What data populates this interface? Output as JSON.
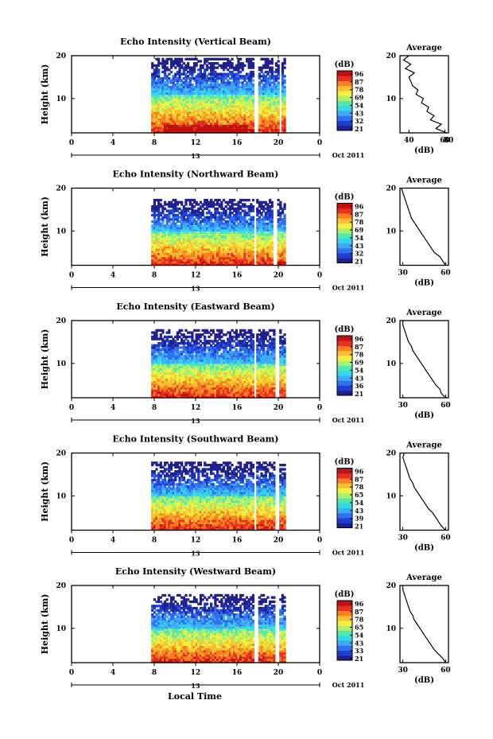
{
  "figure": {
    "x_axis_label": "Local Time",
    "x_range": [
      0,
      24
    ],
    "x_ticks": [
      "0",
      "4",
      "8",
      "12",
      "16",
      "20",
      "0"
    ],
    "day_marker": "13",
    "date_label": "Oct 2011"
  },
  "colors": {
    "colormap": [
      "#20208f",
      "#1f3fd0",
      "#2f6ff0",
      "#3fa8f8",
      "#30d8e8",
      "#50e8b0",
      "#a8f070",
      "#f0f040",
      "#f8c030",
      "#f88020",
      "#e83020",
      "#c01010"
    ],
    "missing": "#ffffff",
    "axis": "#000000"
  },
  "chart_data": [
    {
      "type": "heatmap",
      "title": "Echo Intensity (Vertical Beam)",
      "xlabel": "",
      "ylabel": "Height (km)",
      "xlim": [
        0,
        24
      ],
      "ylim": [
        2,
        20
      ],
      "y_ticks": [
        "10",
        "20"
      ],
      "colorbar": {
        "unit": "(dB)",
        "ticks": [
          "96",
          "87",
          "78",
          "69",
          "54",
          "43",
          "32",
          "21"
        ]
      },
      "data_start_hour": 7.7,
      "data_end_hour": 20.7,
      "data_gaps": [
        [
          17.6,
          18.0
        ],
        [
          20.0,
          20.3
        ]
      ],
      "top_height_km": 19.5,
      "profile": {
        "title": "Average",
        "xlabel": "(dB)",
        "ylabel": "",
        "xlim": [
          35,
          62
        ],
        "x_ticks": [
          "40",
          "60",
          "80"
        ],
        "y_ticks": [
          "10",
          "20"
        ],
        "height_km": [
          2,
          3,
          4,
          5,
          6,
          7,
          8,
          9,
          10,
          11,
          12,
          13,
          14,
          15,
          16,
          17,
          18,
          19,
          20
        ],
        "db": [
          61,
          55,
          58,
          52,
          54,
          50,
          51,
          47,
          48,
          44,
          45,
          42,
          41,
          40,
          43,
          38,
          41,
          37,
          40
        ]
      }
    },
    {
      "type": "heatmap",
      "title": "Echo Intensity (Northward Beam)",
      "xlabel": "",
      "ylabel": "Height (km)",
      "xlim": [
        0,
        24
      ],
      "ylim": [
        2,
        20
      ],
      "y_ticks": [
        "10",
        "20"
      ],
      "colorbar": {
        "unit": "(dB)",
        "ticks": [
          "96",
          "87",
          "78",
          "69",
          "54",
          "43",
          "32",
          "21"
        ]
      },
      "data_start_hour": 7.7,
      "data_end_hour": 20.7,
      "data_gaps": [
        [
          17.6,
          17.9
        ],
        [
          19.4,
          19.9
        ]
      ],
      "top_height_km": 17.5,
      "profile": {
        "title": "Average",
        "xlabel": "(dB)",
        "ylabel": "",
        "xlim": [
          28,
          62
        ],
        "x_ticks": [
          "30",
          "60"
        ],
        "y_ticks": [
          "10",
          "20"
        ],
        "height_km": [
          2,
          3,
          4,
          5,
          6,
          7,
          8,
          9,
          10,
          11,
          12,
          13,
          14,
          15,
          16,
          17,
          18,
          19,
          20
        ],
        "db": [
          60,
          58,
          56,
          52,
          50,
          48,
          46,
          44,
          42,
          40,
          38,
          36,
          35,
          34,
          33,
          32,
          31,
          30,
          29
        ]
      }
    },
    {
      "type": "heatmap",
      "title": "Echo Intensity (Eastward Beam)",
      "xlabel": "",
      "ylabel": "Height (km)",
      "xlim": [
        0,
        24
      ],
      "ylim": [
        2,
        20
      ],
      "y_ticks": [
        "10",
        "20"
      ],
      "colorbar": {
        "unit": "(dB)",
        "ticks": [
          "96",
          "87",
          "78",
          "69",
          "54",
          "43",
          "36",
          "21"
        ]
      },
      "data_start_hour": 7.7,
      "data_end_hour": 20.7,
      "data_gaps": [
        [
          17.6,
          17.9
        ],
        [
          19.6,
          20.1
        ]
      ],
      "top_height_km": 18,
      "profile": {
        "title": "Average",
        "xlabel": "(dB)",
        "ylabel": "",
        "xlim": [
          28,
          62
        ],
        "x_ticks": [
          "30",
          "60"
        ],
        "y_ticks": [
          "10",
          "20"
        ],
        "height_km": [
          2,
          3,
          4,
          5,
          6,
          7,
          8,
          9,
          10,
          11,
          12,
          13,
          14,
          15,
          16,
          17,
          18,
          19,
          20
        ],
        "db": [
          60,
          57,
          56,
          53,
          51,
          49,
          47,
          45,
          43,
          41,
          39,
          37,
          36,
          34,
          33,
          32,
          31,
          30,
          30
        ]
      }
    },
    {
      "type": "heatmap",
      "title": "Echo Intensity (Southward Beam)",
      "xlabel": "",
      "ylabel": "Height (km)",
      "xlim": [
        0,
        24
      ],
      "ylim": [
        2,
        20
      ],
      "y_ticks": [
        "10",
        "20"
      ],
      "colorbar": {
        "unit": "(dB)",
        "ticks": [
          "96",
          "87",
          "78",
          "65",
          "54",
          "43",
          "39",
          "21"
        ]
      },
      "data_start_hour": 7.7,
      "data_end_hour": 20.7,
      "data_gaps": [
        [
          17.6,
          17.9
        ],
        [
          19.6,
          20.1
        ]
      ],
      "top_height_km": 18,
      "profile": {
        "title": "Average",
        "xlabel": "(dB)",
        "ylabel": "",
        "xlim": [
          28,
          62
        ],
        "x_ticks": [
          "30",
          "60"
        ],
        "y_ticks": [
          "10",
          "20"
        ],
        "height_km": [
          2,
          3,
          4,
          5,
          6,
          7,
          8,
          9,
          10,
          11,
          12,
          13,
          14,
          15,
          16,
          17,
          18,
          19,
          20
        ],
        "db": [
          60,
          57,
          55,
          53,
          51,
          48,
          46,
          44,
          42,
          40,
          38,
          37,
          35,
          34,
          33,
          32,
          31,
          30,
          31
        ]
      }
    },
    {
      "type": "heatmap",
      "title": "Echo Intensity (Westward Beam)",
      "xlabel": "Local Time",
      "ylabel": "Height (km)",
      "xlim": [
        0,
        24
      ],
      "ylim": [
        2,
        20
      ],
      "y_ticks": [
        "10",
        "20"
      ],
      "colorbar": {
        "unit": "(dB)",
        "ticks": [
          "96",
          "87",
          "78",
          "65",
          "54",
          "43",
          "33",
          "21"
        ]
      },
      "data_start_hour": 7.7,
      "data_end_hour": 20.7,
      "data_gaps": [
        [
          17.6,
          18.0
        ],
        [
          19.6,
          20.1
        ]
      ],
      "top_height_km": 18,
      "profile": {
        "title": "Average",
        "xlabel": "(dB)",
        "ylabel": "",
        "xlim": [
          28,
          62
        ],
        "x_ticks": [
          "30",
          "60"
        ],
        "y_ticks": [
          "10",
          "20"
        ],
        "height_km": [
          2,
          3,
          4,
          5,
          6,
          7,
          8,
          9,
          10,
          11,
          12,
          13,
          14,
          15,
          16,
          17,
          18,
          19,
          20
        ],
        "db": [
          60,
          58,
          55,
          52,
          50,
          48,
          46,
          44,
          42,
          40,
          38,
          37,
          35,
          34,
          33,
          32,
          31,
          30,
          30
        ]
      }
    }
  ]
}
